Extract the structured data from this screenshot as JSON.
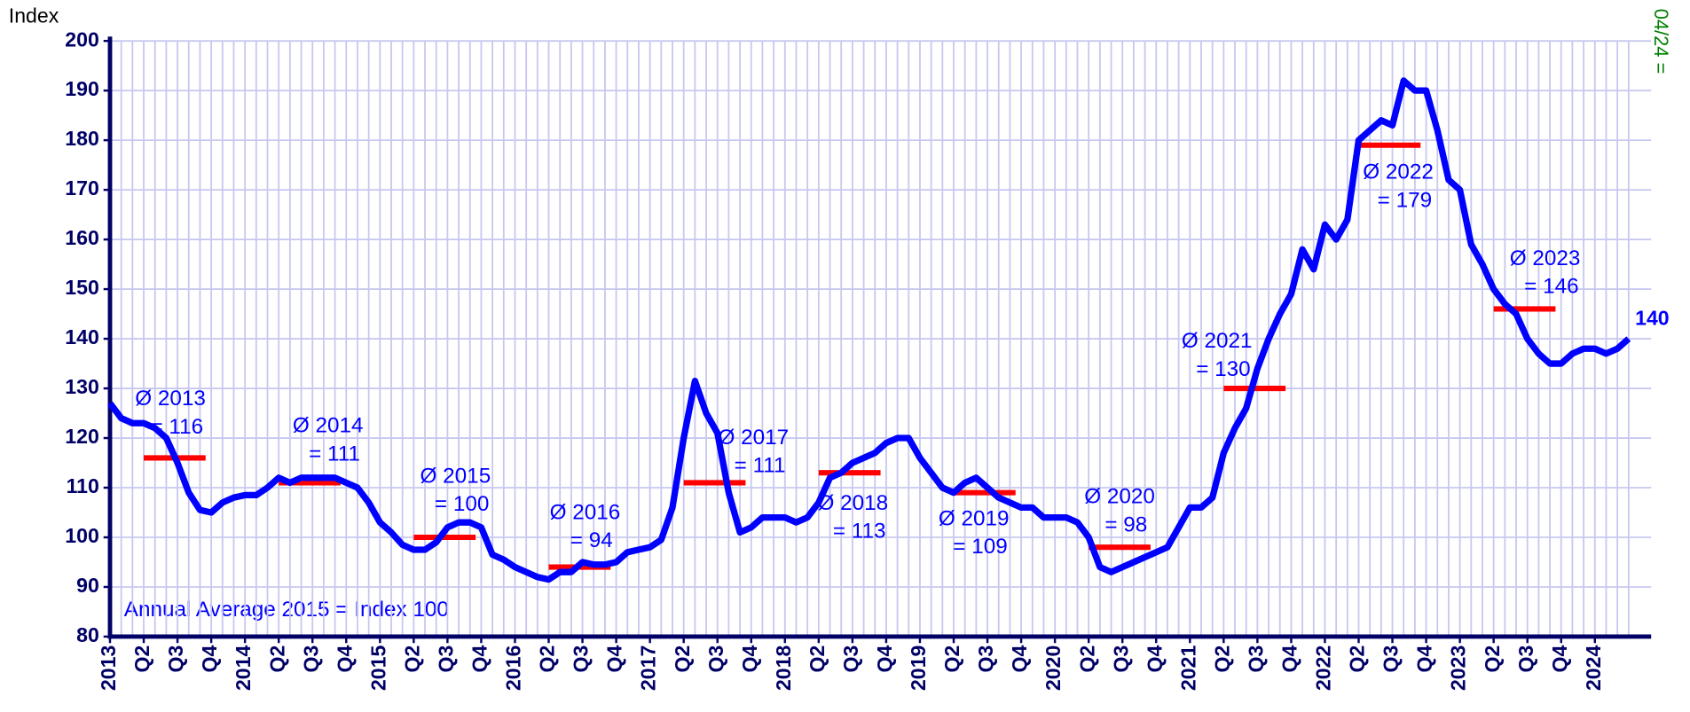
{
  "chart_data": {
    "type": "line",
    "y_axis_label": "Index",
    "note": "Annual Average 2015 = Index 100",
    "date_label": "04/24 =",
    "ylim": [
      80,
      200
    ],
    "yticks": [
      80,
      90,
      100,
      110,
      120,
      130,
      140,
      150,
      160,
      170,
      180,
      190,
      200
    ],
    "grid": true,
    "categories": [
      "2013",
      null,
      null,
      "Q2",
      null,
      null,
      "Q3",
      null,
      null,
      "Q4",
      null,
      null,
      "2014",
      null,
      null,
      "Q2",
      null,
      null,
      "Q3",
      null,
      null,
      "Q4",
      null,
      null,
      "2015",
      null,
      null,
      "Q2",
      null,
      null,
      "Q3",
      null,
      null,
      "Q4",
      null,
      null,
      "2016",
      null,
      null,
      "Q2",
      null,
      null,
      "Q3",
      null,
      null,
      "Q4",
      null,
      null,
      "2017",
      null,
      null,
      "Q2",
      null,
      null,
      "Q3",
      null,
      null,
      "Q4",
      null,
      null,
      "2018",
      null,
      null,
      "Q2",
      null,
      null,
      "Q3",
      null,
      null,
      "Q4",
      null,
      null,
      "2019",
      null,
      null,
      "Q2",
      null,
      null,
      "Q3",
      null,
      null,
      "Q4",
      null,
      null,
      "2020",
      null,
      null,
      "Q2",
      null,
      null,
      "Q3",
      null,
      null,
      "Q4",
      null,
      null,
      "2021",
      null,
      null,
      "Q2",
      null,
      null,
      "Q3",
      null,
      null,
      "Q4",
      null,
      null,
      "2022",
      null,
      null,
      "Q2",
      null,
      null,
      "Q3",
      null,
      null,
      "Q4",
      null,
      null,
      "2023",
      null,
      null,
      "Q2",
      null,
      null,
      "Q3",
      null,
      null,
      "Q4",
      null,
      null,
      "2024",
      null,
      null,
      null
    ],
    "series": [
      {
        "name": "Index",
        "color": "#0000ff",
        "values": [
          127,
          124,
          123,
          123,
          122,
          120,
          115,
          109,
          105.5,
          105,
          107,
          108,
          108.5,
          108.5,
          110,
          112,
          111,
          112,
          112,
          112,
          112,
          111,
          110,
          107,
          103,
          101,
          98.5,
          97.5,
          97.5,
          99,
          102,
          103,
          103,
          102,
          96.5,
          95.5,
          94,
          93,
          92,
          91.5,
          93,
          93,
          95,
          94.5,
          94.5,
          95,
          97,
          97.5,
          98,
          99.5,
          106,
          120,
          131.5,
          125,
          121,
          109,
          101,
          102,
          104,
          104,
          104,
          103,
          104,
          107,
          112,
          113,
          115,
          116,
          117,
          119,
          120,
          120,
          116,
          113,
          110,
          109,
          111,
          112,
          110,
          108,
          107,
          106,
          106,
          104,
          104,
          104,
          103,
          100,
          94,
          93,
          94,
          95,
          96,
          97,
          98,
          102,
          106,
          106,
          108,
          117,
          122,
          126,
          134,
          140,
          145,
          149,
          158,
          154,
          163,
          160,
          164,
          180,
          182,
          184,
          183,
          192,
          190,
          190,
          182,
          172,
          170,
          159,
          155,
          150,
          147,
          145,
          140,
          137,
          135,
          135,
          137,
          138,
          138,
          137,
          138,
          140
        ]
      }
    ],
    "averages_color": "#ff0000",
    "annual_averages": [
      {
        "label": "Ø 2013",
        "value": 116,
        "value_label": "= 116"
      },
      {
        "label": "Ø 2014",
        "value": 111,
        "value_label": "= 111"
      },
      {
        "label": "Ø 2015",
        "value": 100,
        "value_label": "= 100"
      },
      {
        "label": "Ø 2016",
        "value": 94,
        "value_label": "= 94"
      },
      {
        "label": "Ø 2017",
        "value": 111,
        "value_label": "= 111"
      },
      {
        "label": "Ø 2018",
        "value": 113,
        "value_label": "= 113"
      },
      {
        "label": "Ø 2019",
        "value": 109,
        "value_label": "= 109"
      },
      {
        "label": "Ø 2020",
        "value": 98,
        "value_label": "= 98"
      },
      {
        "label": "Ø 2021",
        "value": 130,
        "value_label": "= 130"
      },
      {
        "label": "Ø 2022",
        "value": 179,
        "value_label": "= 179"
      },
      {
        "label": "Ø 2023",
        "value": 146,
        "value_label": "= 146"
      }
    ]
  }
}
